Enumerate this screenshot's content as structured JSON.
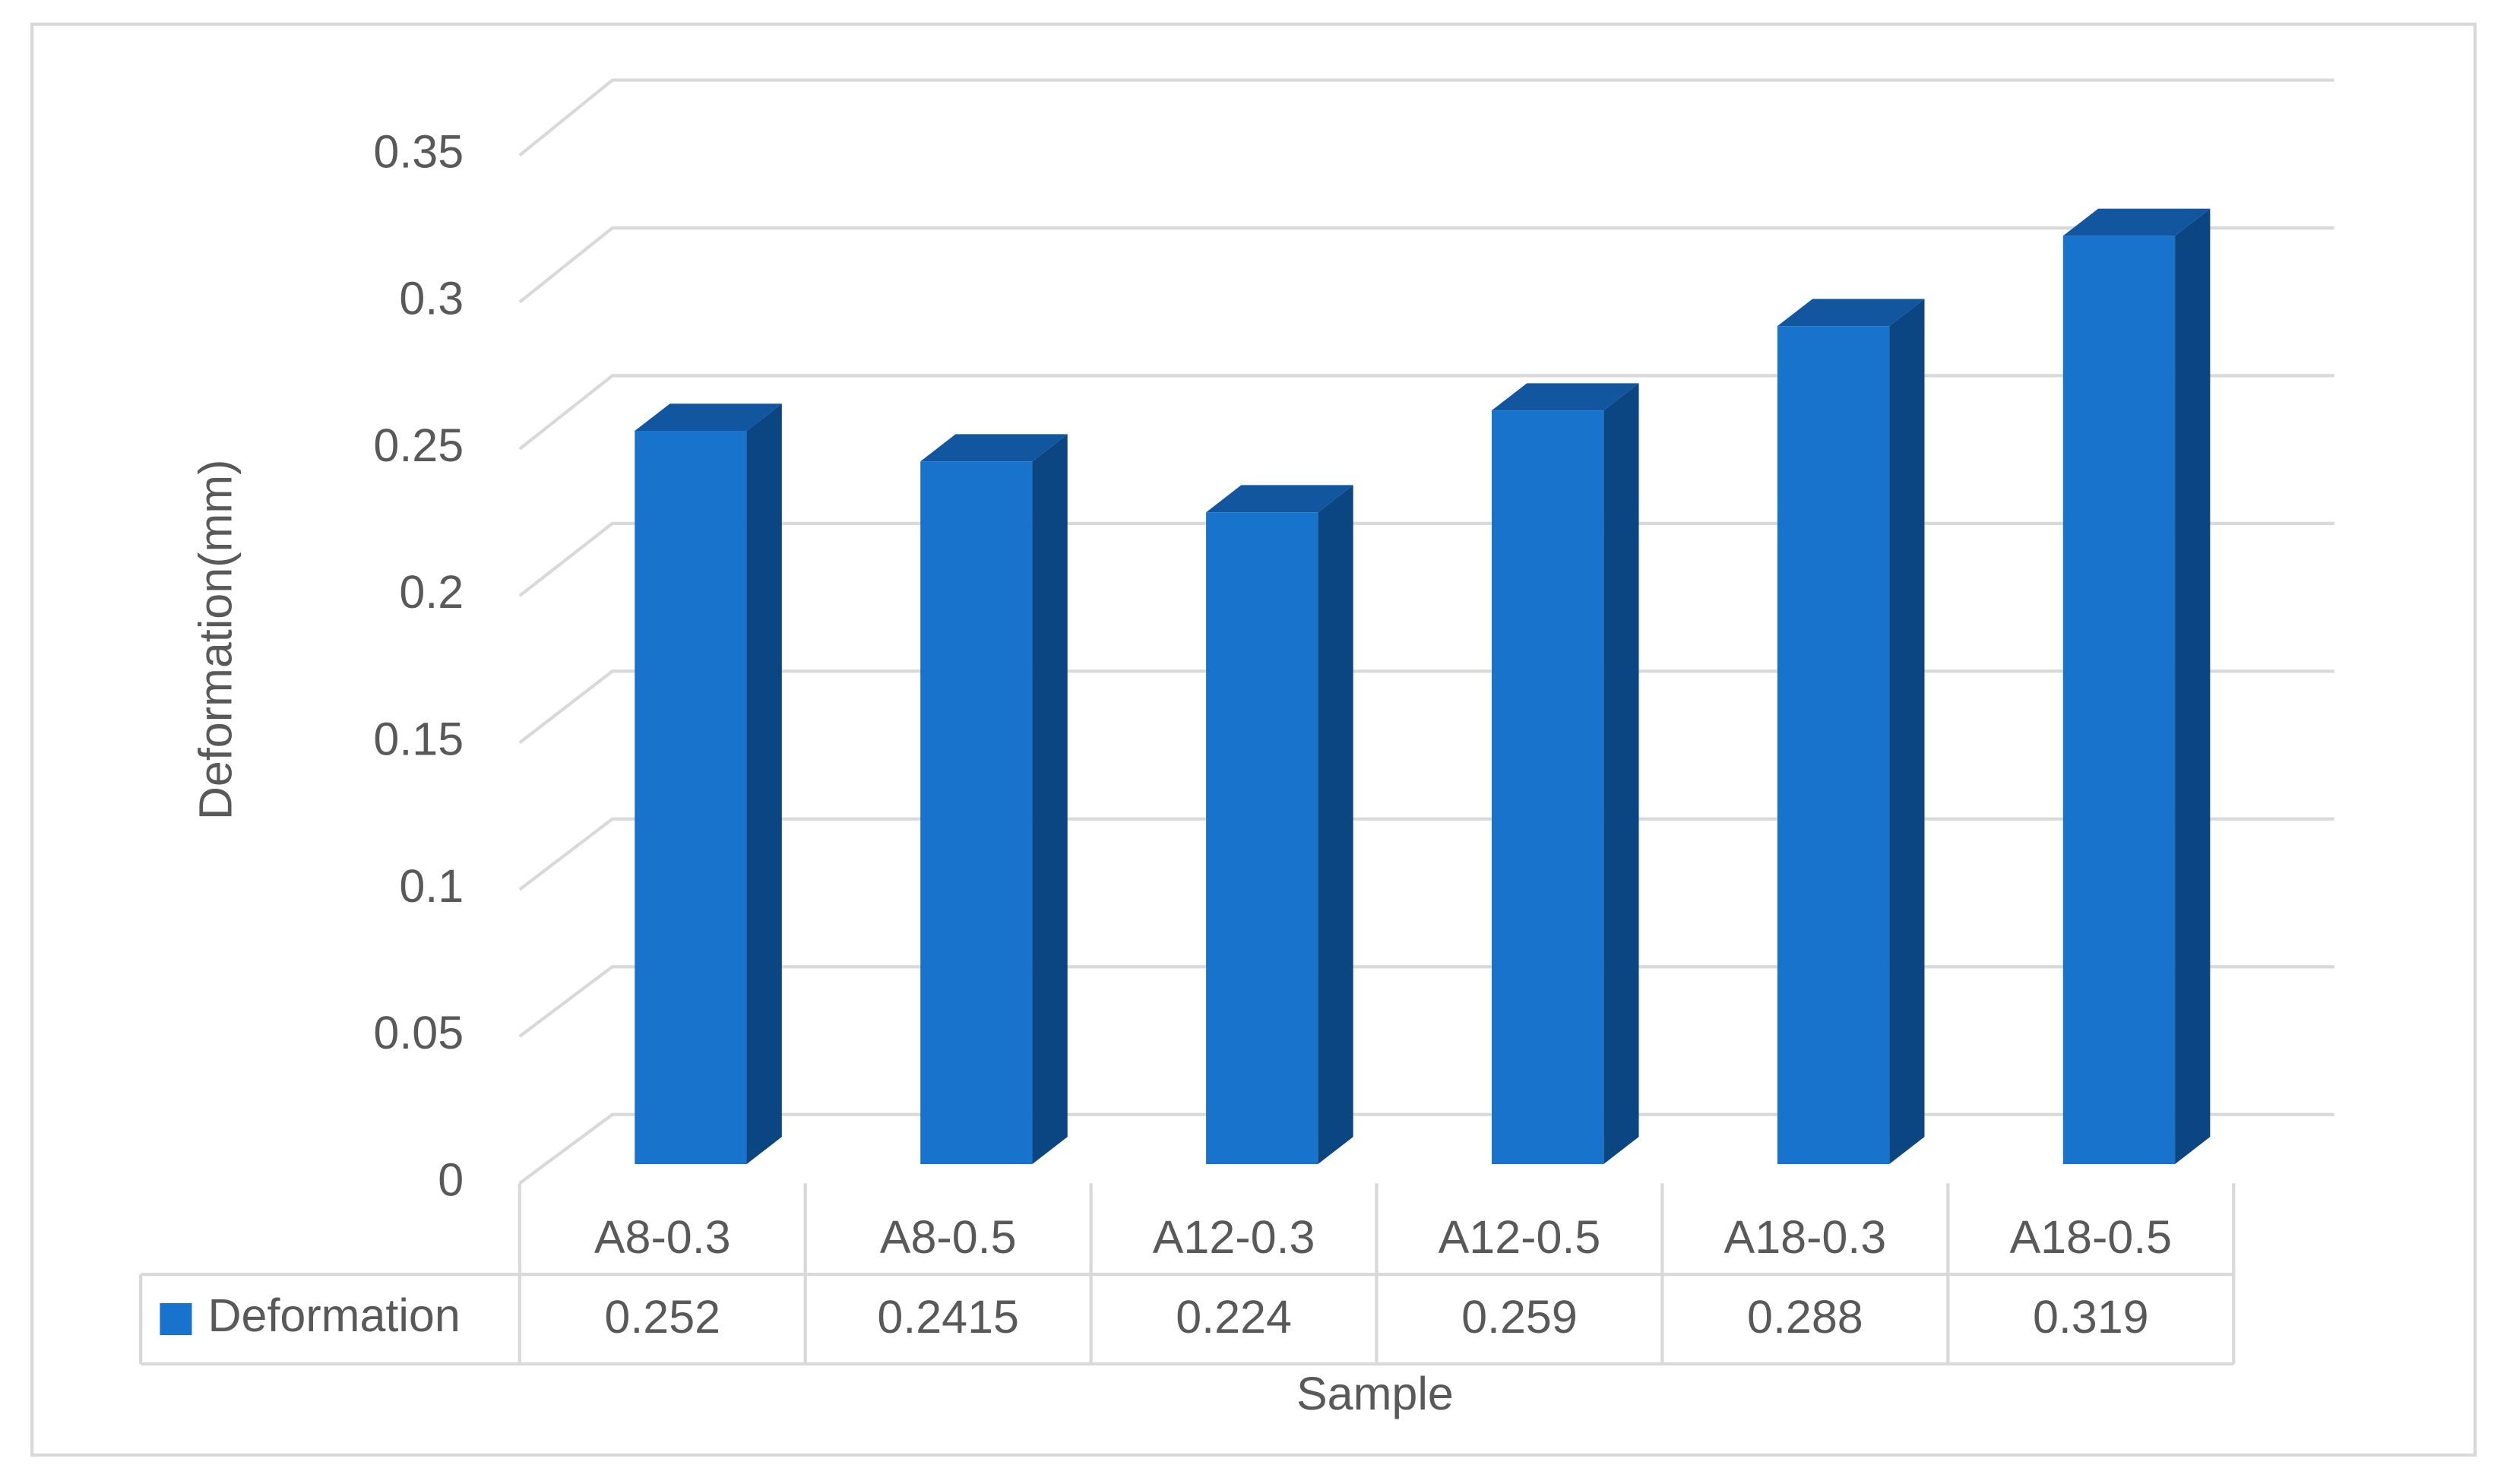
{
  "chart_data": {
    "type": "bar3d",
    "x_label": "Sample",
    "y_label": "Deformation(mm)",
    "categories": [
      "A8-0.3",
      "A8-0.5",
      "A12-0.3",
      "A12-0.5",
      "A18-0.3",
      "A18-0.5"
    ],
    "series": [
      {
        "name": "Deformation",
        "color": "#1873cc",
        "values": [
          0.252,
          0.2415,
          0.224,
          0.259,
          0.288,
          0.319
        ]
      }
    ],
    "ylim": [
      0,
      0.35
    ],
    "yticks": [
      0,
      0.05,
      0.1,
      0.15,
      0.2,
      0.25,
      0.3,
      0.35
    ],
    "grid": true,
    "data_table": true
  }
}
